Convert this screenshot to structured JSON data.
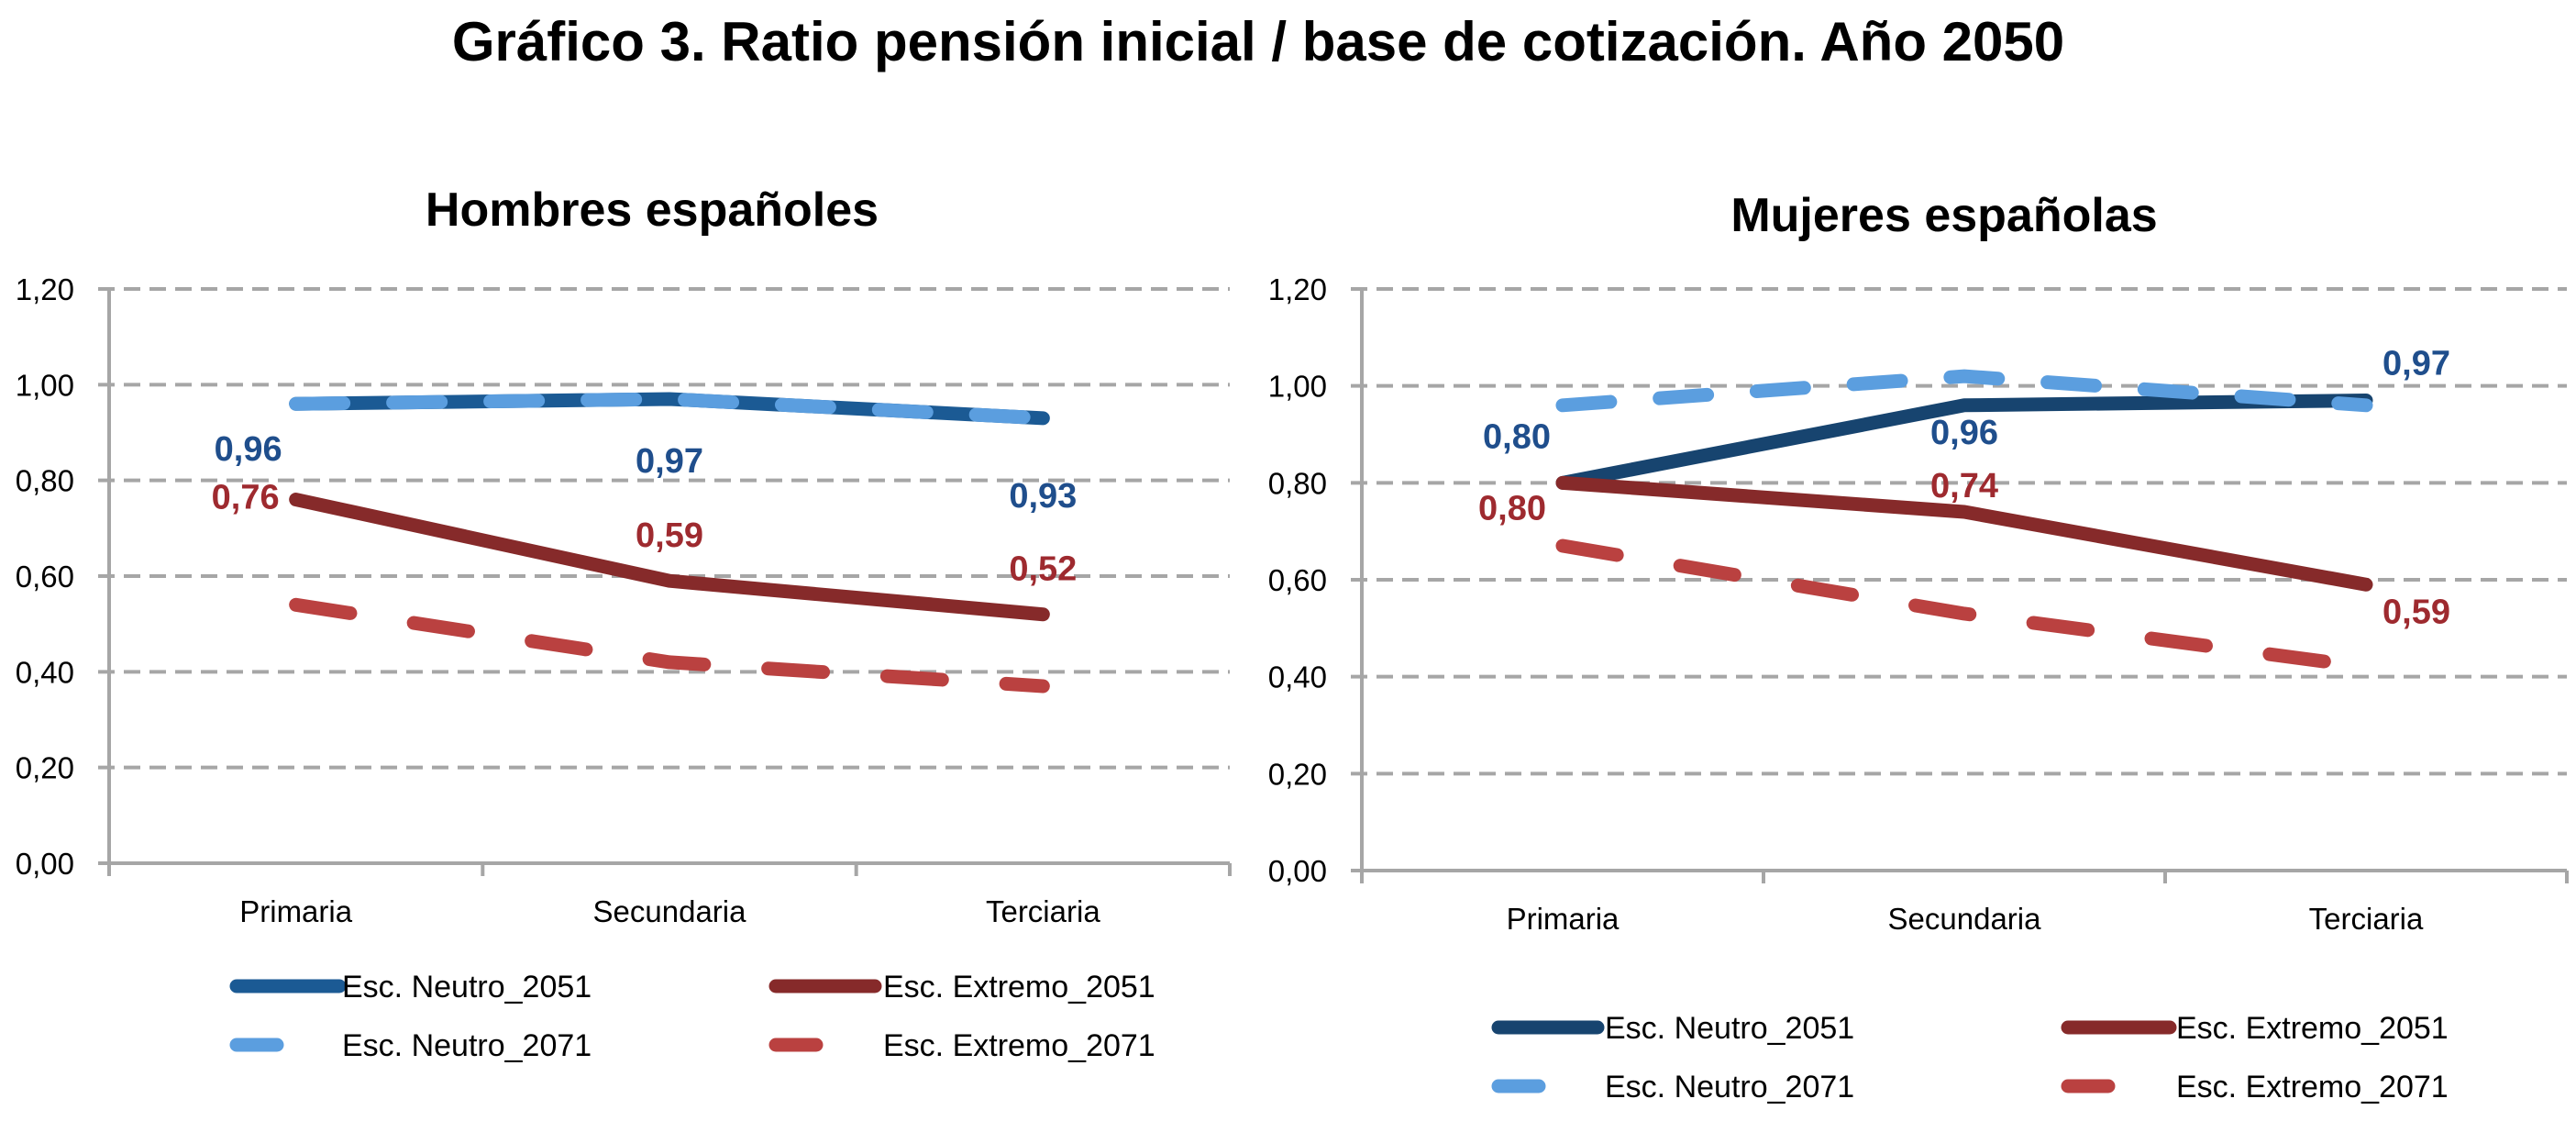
{
  "page": {
    "title": "Gráfico 3. Ratio pensión inicial / base de cotización. Año 2050"
  },
  "chart_data": [
    {
      "type": "line",
      "title": "Hombres españoles",
      "xlabel": "",
      "ylabel": "",
      "categories": [
        "Primaria",
        "Secundaria",
        "Terciaria"
      ],
      "ylim": [
        0,
        1.2
      ],
      "yticks": [
        0,
        0.2,
        0.4,
        0.6,
        0.8,
        1.0,
        1.2
      ],
      "ytick_labels": [
        "0,00",
        "0,20",
        "0,40",
        "0,60",
        "0,80",
        "1,00",
        "1,20"
      ],
      "grid": true,
      "legend_position": "bottom",
      "series": [
        {
          "name": "Esc. Neutro_2051",
          "style": "solid",
          "color": "#1B5A94",
          "values": [
            0.96,
            0.97,
            0.93
          ],
          "labels": [
            "0,96",
            "0,97",
            "0,93"
          ],
          "label_color": "#1F4E8C"
        },
        {
          "name": "Esc. Extremo_2051",
          "style": "solid",
          "color": "#862A2A",
          "values": [
            0.76,
            0.59,
            0.52
          ],
          "labels": [
            "0,76",
            "0,59",
            "0,52"
          ],
          "label_color": "#9E2A2F"
        },
        {
          "name": "Esc. Neutro_2071",
          "style": "dashed",
          "color": "#5B9EDF",
          "values": [
            0.96,
            0.97,
            0.93
          ],
          "labels": []
        },
        {
          "name": "Esc. Extremo_2071",
          "style": "dashed",
          "color": "#BA4140",
          "values": [
            0.54,
            0.42,
            0.37
          ],
          "labels": []
        }
      ]
    },
    {
      "type": "line",
      "title": "Mujeres españolas",
      "xlabel": "",
      "ylabel": "",
      "categories": [
        "Primaria",
        "Secundaria",
        "Terciaria"
      ],
      "ylim": [
        0,
        1.2
      ],
      "yticks": [
        0,
        0.2,
        0.4,
        0.6,
        0.8,
        1.0,
        1.2
      ],
      "ytick_labels": [
        "0,00",
        "0,20",
        "0,40",
        "0,60",
        "0,80",
        "1,00",
        "1,20"
      ],
      "grid": true,
      "legend_position": "bottom",
      "series": [
        {
          "name": "Esc. Neutro_2051",
          "style": "solid",
          "color": "#17446F",
          "values": [
            0.8,
            0.96,
            0.97
          ],
          "labels": [
            "0,80",
            "0,96",
            "0,97"
          ],
          "label_color": "#1F4E8C"
        },
        {
          "name": "Esc. Extremo_2051",
          "style": "solid",
          "color": "#862A2A",
          "values": [
            0.8,
            0.74,
            0.59
          ],
          "labels": [
            "0,80",
            "0,74",
            "0,59"
          ],
          "label_color": "#9E2A2F"
        },
        {
          "name": "Esc. Neutro_2071",
          "style": "dashed",
          "color": "#5B9EDF",
          "values": [
            0.96,
            1.02,
            0.96
          ],
          "labels": []
        },
        {
          "name": "Esc. Extremo_2071",
          "style": "dashed",
          "color": "#BA4140",
          "values": [
            0.67,
            0.53,
            0.42
          ],
          "labels": []
        }
      ]
    }
  ],
  "colors": {
    "grid": "#A6A6A6",
    "axis": "#A6A6A6",
    "text": "#000000"
  }
}
